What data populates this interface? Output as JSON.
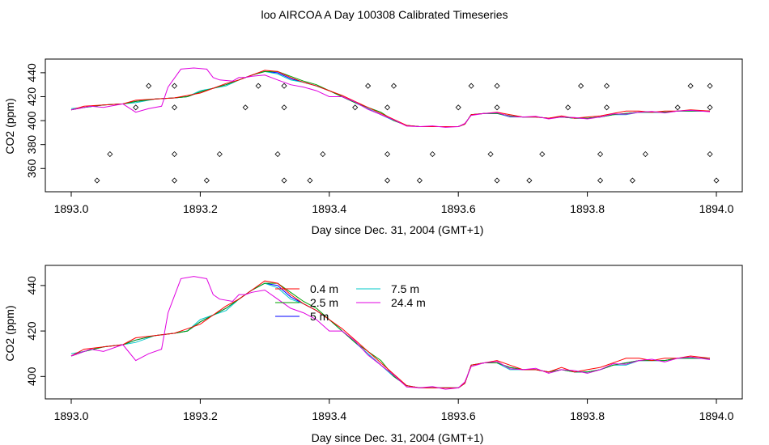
{
  "title": "loo AIRCOA A  Day 100308  Calibrated Timeseries",
  "chart_data": [
    {
      "type": "line",
      "xlabel": "Day since Dec. 31, 2004 (GMT+1)",
      "ylabel": "CO2 (ppm)",
      "xlim": [
        1893.0,
        1894.0
      ],
      "ylim": [
        346,
        446
      ],
      "xticks": [
        "1893.0",
        "1893.2",
        "1893.4",
        "1893.6",
        "1893.8",
        "1894.0"
      ],
      "yticks": [
        "360",
        "380",
        "400",
        "420",
        "440"
      ],
      "colors": {
        "0.4 m": "#ff0000",
        "2.5 m": "#00a000",
        "5 m": "#0000ff",
        "7.5 m": "#00c8c8",
        "24.4 m": "#e000e0"
      },
      "base_x": [
        1893.0,
        1893.02,
        1893.05,
        1893.08,
        1893.1,
        1893.13,
        1893.16,
        1893.18,
        1893.2,
        1893.22,
        1893.24,
        1893.26,
        1893.28,
        1893.3,
        1893.32,
        1893.34,
        1893.36,
        1893.38,
        1893.4,
        1893.42,
        1893.44,
        1893.46,
        1893.48,
        1893.5,
        1893.52,
        1893.54,
        1893.56,
        1893.58,
        1893.6,
        1893.61,
        1893.62,
        1893.64,
        1893.66,
        1893.68,
        1893.7,
        1893.72,
        1893.74,
        1893.76,
        1893.78,
        1893.8,
        1893.82,
        1893.84,
        1893.86,
        1893.88,
        1893.9,
        1893.92,
        1893.94,
        1893.96,
        1893.99
      ],
      "base_y": [
        409,
        411,
        413,
        414,
        416,
        418,
        419,
        420,
        424,
        427,
        430,
        434,
        438,
        441,
        440,
        435,
        432,
        429,
        425,
        420,
        415,
        410,
        405,
        400,
        396,
        395,
        395,
        395,
        395,
        397,
        405,
        406,
        406,
        404,
        403,
        403,
        402,
        403,
        402,
        402,
        403,
        405,
        406,
        407,
        407,
        407,
        408,
        408,
        408
      ],
      "series": [
        {
          "name": "0.4 m",
          "offsets": [
            0,
            1,
            0,
            0,
            1,
            0,
            0,
            1,
            -1,
            0,
            1,
            0,
            0,
            1,
            1,
            1,
            0,
            0,
            0,
            1,
            1,
            1,
            1,
            1,
            0,
            0,
            0,
            0,
            0,
            0,
            0,
            0,
            1,
            1,
            0,
            0,
            0,
            1,
            0,
            1,
            1,
            1,
            2,
            1,
            0,
            1,
            0,
            1,
            0
          ]
        },
        {
          "name": "2.5 m",
          "offsets": [
            0,
            0,
            0,
            0,
            0,
            0,
            0,
            0,
            0,
            0,
            0,
            0,
            0,
            0,
            1,
            2,
            1,
            1,
            0,
            0,
            0,
            1,
            2,
            0,
            0,
            0,
            0,
            0,
            0,
            0,
            0,
            0,
            0,
            0,
            0,
            0,
            0,
            0,
            0,
            0,
            0,
            0,
            0,
            0,
            0,
            0,
            0,
            0,
            0
          ]
        },
        {
          "name": "5 m",
          "offsets": [
            0,
            0,
            0,
            0,
            0,
            0,
            0,
            0,
            0,
            0,
            0,
            0,
            0,
            0,
            0,
            0,
            0,
            0,
            0,
            0,
            0,
            0,
            0,
            0,
            0,
            0,
            0,
            0,
            0,
            0,
            0,
            0,
            0,
            0,
            0,
            0,
            0,
            0,
            0,
            0,
            0,
            0,
            0,
            0,
            0,
            0,
            0,
            0,
            0
          ]
        },
        {
          "name": "7.5 m",
          "offsets": [
            1,
            0,
            0,
            0,
            -1,
            0,
            0,
            0,
            1,
            0,
            -1,
            0,
            0,
            0,
            -1,
            -1,
            0,
            0,
            0,
            0,
            0,
            0,
            0,
            0,
            0,
            0,
            0,
            0,
            0,
            0,
            0,
            0,
            0,
            -1,
            0,
            0,
            0,
            0,
            0,
            0,
            0,
            0,
            -1,
            0,
            0,
            0,
            0,
            0,
            0
          ]
        },
        {
          "name": "24.4 m",
          "x": [
            1893.0,
            1893.03,
            1893.05,
            1893.08,
            1893.1,
            1893.12,
            1893.14,
            1893.15,
            1893.17,
            1893.19,
            1893.21,
            1893.22,
            1893.23,
            1893.25,
            1893.26,
            1893.27,
            1893.28,
            1893.3,
            1893.32,
            1893.34,
            1893.36,
            1893.38,
            1893.4,
            1893.42
          ],
          "y": [
            409,
            412,
            411,
            414,
            407,
            410,
            412,
            428,
            443,
            444,
            443,
            436,
            434,
            433,
            436,
            436,
            437,
            438,
            434,
            430,
            428,
            425,
            420,
            420
          ]
        }
      ],
      "scatter_points": [
        [
          1893.04,
          350
        ],
        [
          1893.06,
          372
        ],
        [
          1893.1,
          411
        ],
        [
          1893.12,
          429
        ],
        [
          1893.16,
          350
        ],
        [
          1893.16,
          372
        ],
        [
          1893.16,
          411
        ],
        [
          1893.16,
          429
        ],
        [
          1893.21,
          350
        ],
        [
          1893.23,
          372
        ],
        [
          1893.27,
          411
        ],
        [
          1893.29,
          429
        ],
        [
          1893.32,
          372
        ],
        [
          1893.33,
          350
        ],
        [
          1893.33,
          411
        ],
        [
          1893.33,
          429
        ],
        [
          1893.37,
          350
        ],
        [
          1893.39,
          372
        ],
        [
          1893.44,
          411
        ],
        [
          1893.46,
          429
        ],
        [
          1893.49,
          350
        ],
        [
          1893.49,
          372
        ],
        [
          1893.49,
          411
        ],
        [
          1893.5,
          429
        ],
        [
          1893.54,
          350
        ],
        [
          1893.56,
          372
        ],
        [
          1893.6,
          411
        ],
        [
          1893.62,
          429
        ],
        [
          1893.65,
          372
        ],
        [
          1893.66,
          350
        ],
        [
          1893.66,
          411
        ],
        [
          1893.66,
          429
        ],
        [
          1893.71,
          350
        ],
        [
          1893.73,
          372
        ],
        [
          1893.77,
          411
        ],
        [
          1893.79,
          429
        ],
        [
          1893.82,
          372
        ],
        [
          1893.82,
          350
        ],
        [
          1893.83,
          411
        ],
        [
          1893.83,
          429
        ],
        [
          1893.87,
          350
        ],
        [
          1893.89,
          372
        ],
        [
          1893.94,
          411
        ],
        [
          1893.96,
          429
        ],
        [
          1893.99,
          372
        ],
        [
          1894.0,
          350
        ],
        [
          1893.99,
          411
        ],
        [
          1893.99,
          429
        ]
      ]
    },
    {
      "type": "line",
      "xlabel": "Day since Dec. 31, 2004 (GMT+1)",
      "ylabel": "CO2 (ppm)",
      "xlim": [
        1893.0,
        1894.0
      ],
      "ylim": [
        393,
        446
      ],
      "xticks": [
        "1893.0",
        "1893.2",
        "1893.4",
        "1893.6",
        "1893.8",
        "1894.0"
      ],
      "yticks": [
        "400",
        "420",
        "440"
      ],
      "legend": [
        "0.4 m",
        "2.5 m",
        "5 m",
        "7.5 m",
        "24.4 m"
      ]
    }
  ]
}
